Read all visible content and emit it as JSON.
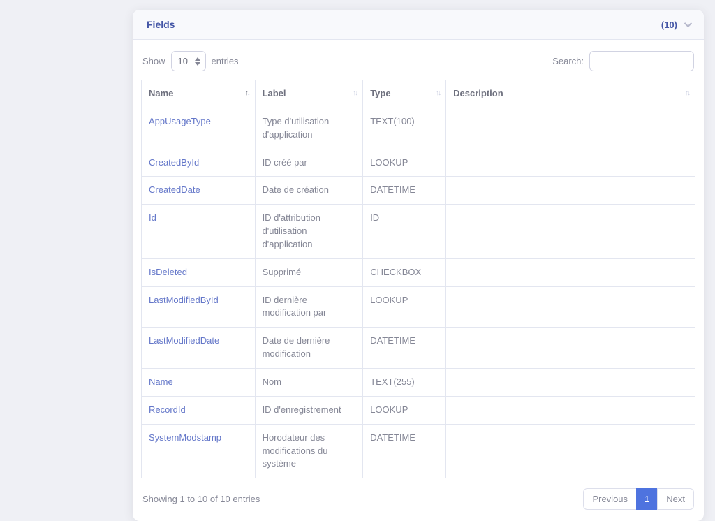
{
  "card": {
    "title": "Fields",
    "count_badge": "(10)"
  },
  "controls": {
    "show_label": "Show",
    "entries_label": "entries",
    "page_length_value": "10",
    "search_label": "Search:",
    "search_value": "",
    "search_placeholder": ""
  },
  "table": {
    "columns": [
      {
        "label": "Name",
        "sort": "asc"
      },
      {
        "label": "Label",
        "sort": "none"
      },
      {
        "label": "Type",
        "sort": "none"
      },
      {
        "label": "Description",
        "sort": "none"
      }
    ],
    "rows": [
      {
        "name": "AppUsageType",
        "label": "Type d'utilisation d'application",
        "type": "TEXT(100)",
        "description": ""
      },
      {
        "name": "CreatedById",
        "label": "ID créé par",
        "type": "LOOKUP",
        "description": ""
      },
      {
        "name": "CreatedDate",
        "label": "Date de création",
        "type": "DATETIME",
        "description": ""
      },
      {
        "name": "Id",
        "label": "ID d'attribution d'utilisation d'application",
        "type": "ID",
        "description": ""
      },
      {
        "name": "IsDeleted",
        "label": "Supprimé",
        "type": "CHECKBOX",
        "description": ""
      },
      {
        "name": "LastModifiedById",
        "label": "ID dernière modification par",
        "type": "LOOKUP",
        "description": ""
      },
      {
        "name": "LastModifiedDate",
        "label": "Date de dernière modification",
        "type": "DATETIME",
        "description": ""
      },
      {
        "name": "Name",
        "label": "Nom",
        "type": "TEXT(255)",
        "description": ""
      },
      {
        "name": "RecordId",
        "label": "ID d'enregistrement",
        "type": "LOOKUP",
        "description": ""
      },
      {
        "name": "SystemModstamp",
        "label": "Horodateur des modifications du système",
        "type": "DATETIME",
        "description": ""
      }
    ]
  },
  "footer": {
    "info": "Showing 1 to 10 of 10 entries",
    "pagination": {
      "previous_label": "Previous",
      "current_page": "1",
      "next_label": "Next"
    }
  },
  "colors": {
    "accent": "#4e73df",
    "title_blue": "#4456a6",
    "link_blue": "#6477c9",
    "text_gray": "#858796",
    "border": "#e3e6f0"
  }
}
